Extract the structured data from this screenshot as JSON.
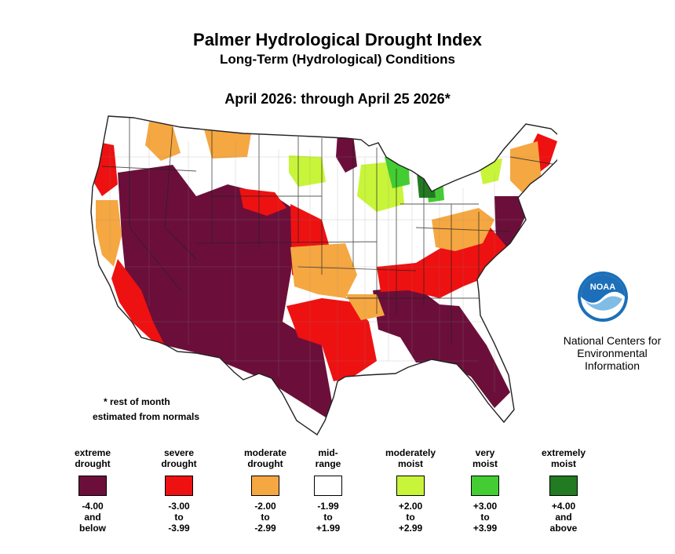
{
  "title": "Palmer Hydrological Drought Index",
  "subtitle": "Long-Term (Hydrological) Conditions",
  "period": "April 2026: through April 25 2026*",
  "organization": {
    "line1": "National Centers for",
    "line2": "Environmental",
    "line3": "Information",
    "logo_text": "NOAA"
  },
  "note": {
    "line1": "* rest of month",
    "line2": "estimated from normals"
  },
  "colors": {
    "extreme_drought": "#6b0f3a",
    "severe_drought": "#ee1111",
    "moderate_drought": "#f5a742",
    "mid_range": "#ffffff",
    "moderately_moist": "#c8f53a",
    "very_moist": "#44cc33",
    "extremely_moist": "#227a22"
  },
  "legend": [
    {
      "label1": "extreme",
      "label2": "drought",
      "color": "#6b0f3a",
      "r1": "-4.00",
      "r2": "and",
      "r3": "below"
    },
    {
      "label1": "severe",
      "label2": "drought",
      "color": "#ee1111",
      "r1": "-3.00",
      "r2": "to",
      "r3": "-3.99"
    },
    {
      "label1": "moderate",
      "label2": "drought",
      "color": "#f5a742",
      "r1": "-2.00",
      "r2": "to",
      "r3": "-2.99"
    },
    {
      "label1": "mid-",
      "label2": "range",
      "color": "#ffffff",
      "r1": "-1.99",
      "r2": "to",
      "r3": "+1.99"
    },
    {
      "label1": "moderately",
      "label2": "moist",
      "color": "#c8f53a",
      "r1": "+2.00",
      "r2": "to",
      "r3": "+2.99"
    },
    {
      "label1": "very",
      "label2": "moist",
      "color": "#44cc33",
      "r1": "+3.00",
      "r2": "to",
      "r3": "+3.99"
    },
    {
      "label1": "extremely",
      "label2": "moist",
      "color": "#227a22",
      "r1": "+4.00",
      "r2": "and",
      "r3": "above"
    }
  ]
}
